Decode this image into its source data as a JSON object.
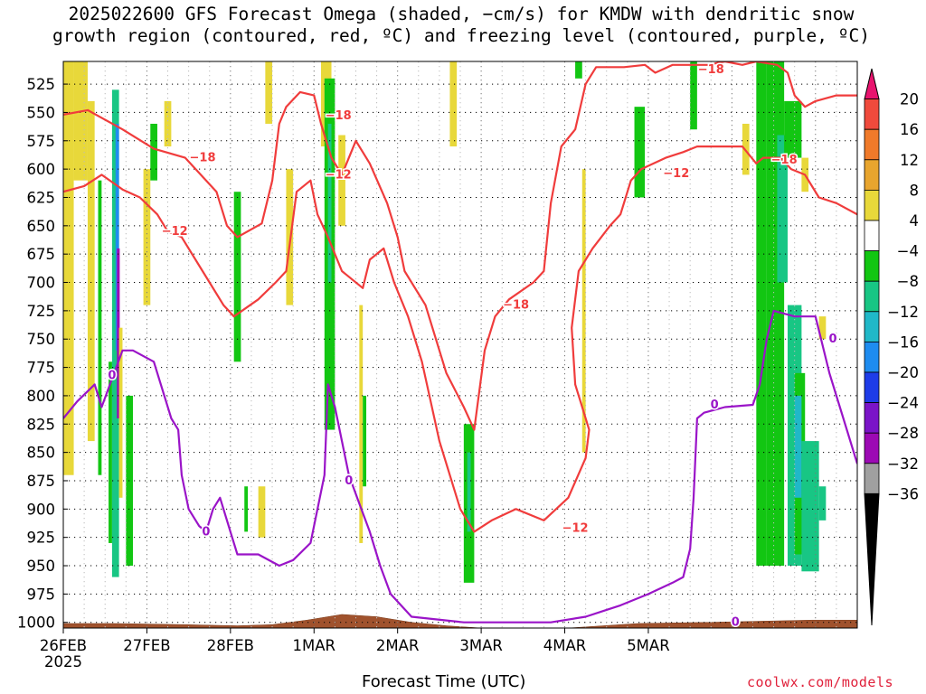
{
  "title_line1": "2025022600 GFS Forecast Omega (shaded, −cm/s) for KMDW with dendritic snow",
  "title_line2": "growth region (contoured, red, ºC) and freezing level (contoured, purple, ºC)",
  "credit": "coolwx.com/models",
  "chart_data": {
    "type": "heatmap",
    "title": "2025022600 GFS Forecast Omega (shaded, −cm/s) for KMDW with dendritic snow growth region (contoured, red, ºC) and freezing level (contoured, purple, ºC)",
    "xlabel": "Forecast Time (UTC)",
    "ylabel": "",
    "x_ticks": [
      "26FEB",
      "27FEB",
      "28FEB",
      "1MAR",
      "2MAR",
      "3MAR",
      "4MAR",
      "5MAR"
    ],
    "x_tick_sublabel": "2025",
    "x_range_hours": [
      0,
      228
    ],
    "y_ticks": [
      525,
      550,
      575,
      600,
      625,
      650,
      675,
      700,
      725,
      750,
      775,
      800,
      825,
      850,
      875,
      900,
      925,
      950,
      975,
      1000
    ],
    "y_range_hPa": [
      1005,
      505
    ],
    "colorbar": {
      "boundaries": [
        20,
        16,
        12,
        8,
        4,
        -4,
        -8,
        -12,
        -16,
        -20,
        -24,
        -28,
        -32,
        -36
      ],
      "labels": [
        "20",
        "16",
        "12",
        "8",
        "4",
        "−4",
        "−8",
        "−12",
        "−16",
        "−20",
        "−24",
        "−28",
        "−32",
        "−36"
      ],
      "colors": [
        "#e8146e",
        "#f04a3c",
        "#f07a2a",
        "#e8a52e",
        "#e8d83a",
        "#ffffff",
        "#12c612",
        "#18c684",
        "#20b8c8",
        "#1e8cf0",
        "#1e3ce8",
        "#7a14c8",
        "#9c0ab4",
        "#a0a0a0",
        "#000000"
      ]
    },
    "omega_cells": [
      {
        "h0": 0,
        "h1": 3,
        "p0": 505,
        "p1": 870,
        "v": 6
      },
      {
        "h0": 3,
        "h1": 7,
        "p0": 505,
        "p1": 610,
        "v": 7
      },
      {
        "h0": 7,
        "h1": 9,
        "p0": 540,
        "p1": 840,
        "v": 6
      },
      {
        "h0": 10,
        "h1": 11,
        "p0": 610,
        "p1": 870,
        "v": -6
      },
      {
        "h0": 13,
        "h1": 14,
        "p0": 770,
        "p1": 930,
        "v": -6
      },
      {
        "h0": 14,
        "h1": 16,
        "p0": 530,
        "p1": 960,
        "v": -10
      },
      {
        "h0": 15,
        "h1": 16,
        "p0": 560,
        "p1": 760,
        "v": -18
      },
      {
        "h0": 15.4,
        "h1": 16.2,
        "p0": 670,
        "p1": 820,
        "v": -30
      },
      {
        "h0": 16,
        "h1": 17,
        "p0": 740,
        "p1": 890,
        "v": 6
      },
      {
        "h0": 18,
        "h1": 20,
        "p0": 800,
        "p1": 950,
        "v": -6
      },
      {
        "h0": 23,
        "h1": 25,
        "p0": 600,
        "p1": 720,
        "v": 6
      },
      {
        "h0": 25,
        "h1": 27,
        "p0": 560,
        "p1": 610,
        "v": -6
      },
      {
        "h0": 29,
        "h1": 31,
        "p0": 540,
        "p1": 580,
        "v": 6
      },
      {
        "h0": 49,
        "h1": 51,
        "p0": 620,
        "p1": 770,
        "v": -6
      },
      {
        "h0": 52,
        "h1": 53,
        "p0": 880,
        "p1": 920,
        "v": -6
      },
      {
        "h0": 56,
        "h1": 58,
        "p0": 880,
        "p1": 925,
        "v": 6
      },
      {
        "h0": 58,
        "h1": 60,
        "p0": 505,
        "p1": 560,
        "v": 6
      },
      {
        "h0": 64,
        "h1": 66,
        "p0": 600,
        "p1": 720,
        "v": 6
      },
      {
        "h0": 74,
        "h1": 77,
        "p0": 505,
        "p1": 580,
        "v": 6
      },
      {
        "h0": 75,
        "h1": 78,
        "p0": 520,
        "p1": 830,
        "v": -6
      },
      {
        "h0": 76,
        "h1": 77,
        "p0": 560,
        "p1": 700,
        "v": -10
      },
      {
        "h0": 79,
        "h1": 81,
        "p0": 570,
        "p1": 650,
        "v": 6
      },
      {
        "h0": 85,
        "h1": 86,
        "p0": 720,
        "p1": 930,
        "v": 6
      },
      {
        "h0": 86,
        "h1": 87,
        "p0": 800,
        "p1": 880,
        "v": -6
      },
      {
        "h0": 111,
        "h1": 113,
        "p0": 505,
        "p1": 580,
        "v": 6
      },
      {
        "h0": 115,
        "h1": 118,
        "p0": 825,
        "p1": 965,
        "v": -6
      },
      {
        "h0": 116,
        "h1": 117,
        "p0": 850,
        "p1": 920,
        "v": -10
      },
      {
        "h0": 147,
        "h1": 149,
        "p0": 505,
        "p1": 520,
        "v": -6
      },
      {
        "h0": 149,
        "h1": 150,
        "p0": 600,
        "p1": 850,
        "v": 6
      },
      {
        "h0": 164,
        "h1": 167,
        "p0": 545,
        "p1": 625,
        "v": -6
      },
      {
        "h0": 180,
        "h1": 182,
        "p0": 505,
        "p1": 565,
        "v": -6
      },
      {
        "h0": 195,
        "h1": 197,
        "p0": 560,
        "p1": 605,
        "v": 6
      },
      {
        "h0": 199,
        "h1": 202,
        "p0": 505,
        "p1": 950,
        "v": -6
      },
      {
        "h0": 202,
        "h1": 207,
        "p0": 505,
        "p1": 950,
        "v": -6
      },
      {
        "h0": 205,
        "h1": 208,
        "p0": 570,
        "p1": 700,
        "v": -10
      },
      {
        "h0": 207,
        "h1": 212,
        "p0": 540,
        "p1": 590,
        "v": -6
      },
      {
        "h0": 208,
        "h1": 212,
        "p0": 720,
        "p1": 950,
        "v": -10
      },
      {
        "h0": 210,
        "h1": 213,
        "p0": 780,
        "p1": 940,
        "v": -6
      },
      {
        "h0": 210,
        "h1": 212,
        "p0": 800,
        "p1": 890,
        "v": -14
      },
      {
        "h0": 212,
        "h1": 214,
        "p0": 590,
        "p1": 620,
        "v": 6
      },
      {
        "h0": 212,
        "h1": 217,
        "p0": 840,
        "p1": 955,
        "v": -10
      },
      {
        "h0": 217,
        "h1": 219,
        "p0": 880,
        "p1": 910,
        "v": -10
      },
      {
        "h0": 217,
        "h1": 219,
        "p0": 730,
        "p1": 750,
        "v": 6
      }
    ],
    "series": [
      {
        "name": "-18",
        "color": "#f03c3c",
        "values": [
          [
            0,
            552
          ],
          [
            7,
            548
          ],
          [
            17,
            565
          ],
          [
            26,
            582
          ],
          [
            35,
            590
          ],
          [
            44,
            620
          ],
          [
            47,
            650
          ],
          [
            50,
            660
          ],
          [
            57,
            648
          ],
          [
            60,
            610
          ],
          [
            62,
            560
          ],
          [
            64,
            545
          ],
          [
            68,
            532
          ],
          [
            72,
            535
          ],
          [
            74,
            560
          ],
          [
            77,
            590
          ],
          [
            80,
            605
          ],
          [
            84,
            575
          ],
          [
            88,
            595
          ],
          [
            93,
            630
          ],
          [
            96,
            660
          ],
          [
            98,
            690
          ],
          [
            104,
            720
          ],
          [
            110,
            780
          ],
          [
            115,
            810
          ],
          [
            118,
            830
          ],
          [
            121,
            760
          ],
          [
            124,
            730
          ],
          [
            128,
            715
          ],
          [
            135,
            700
          ],
          [
            138,
            690
          ],
          [
            140,
            630
          ],
          [
            143,
            580
          ],
          [
            147,
            565
          ],
          [
            150,
            525
          ],
          [
            153,
            510
          ],
          [
            161,
            510
          ],
          [
            167,
            508
          ],
          [
            170,
            515
          ],
          [
            175,
            508
          ],
          [
            185,
            508
          ],
          [
            190,
            505
          ],
          [
            195,
            508
          ],
          [
            199,
            505
          ],
          [
            205,
            508
          ],
          [
            208,
            515
          ],
          [
            210,
            535
          ],
          [
            213,
            545
          ],
          [
            216,
            540
          ],
          [
            222,
            535
          ],
          [
            228,
            535
          ]
        ]
      },
      {
        "name": "-12",
        "color": "#f03c3c",
        "values": [
          [
            0,
            620
          ],
          [
            6,
            615
          ],
          [
            11,
            605
          ],
          [
            17,
            618
          ],
          [
            22,
            625
          ],
          [
            27,
            640
          ],
          [
            30,
            655
          ],
          [
            34,
            660
          ],
          [
            40,
            690
          ],
          [
            46,
            720
          ],
          [
            49,
            730
          ],
          [
            56,
            715
          ],
          [
            61,
            700
          ],
          [
            64,
            690
          ],
          [
            67,
            620
          ],
          [
            71,
            610
          ],
          [
            73,
            640
          ],
          [
            76,
            660
          ],
          [
            80,
            690
          ],
          [
            86,
            705
          ],
          [
            88,
            680
          ],
          [
            92,
            670
          ],
          [
            95,
            700
          ],
          [
            99,
            730
          ],
          [
            103,
            770
          ],
          [
            108,
            840
          ],
          [
            112,
            880
          ],
          [
            114,
            900
          ],
          [
            118,
            920
          ],
          [
            123,
            910
          ],
          [
            130,
            900
          ],
          [
            138,
            910
          ],
          [
            145,
            890
          ],
          [
            150,
            855
          ],
          [
            151,
            830
          ],
          [
            147,
            790
          ],
          [
            146,
            740
          ],
          [
            148,
            690
          ],
          [
            152,
            670
          ],
          [
            157,
            650
          ],
          [
            160,
            640
          ],
          [
            163,
            610
          ],
          [
            166,
            600
          ],
          [
            173,
            590
          ],
          [
            178,
            585
          ],
          [
            182,
            580
          ],
          [
            189,
            580
          ],
          [
            195,
            580
          ],
          [
            199,
            595
          ],
          [
            201,
            590
          ],
          [
            206,
            590
          ],
          [
            209,
            600
          ],
          [
            213,
            605
          ],
          [
            217,
            625
          ],
          [
            222,
            630
          ],
          [
            228,
            640
          ]
        ]
      },
      {
        "name": "0",
        "color": "#9a14c8",
        "values": [
          [
            0,
            820
          ],
          [
            4,
            805
          ],
          [
            9,
            790
          ],
          [
            11,
            810
          ],
          [
            14,
            785
          ],
          [
            17,
            760
          ],
          [
            20,
            760
          ],
          [
            26,
            770
          ],
          [
            29,
            800
          ],
          [
            31,
            820
          ],
          [
            33,
            830
          ],
          [
            34,
            870
          ],
          [
            36,
            900
          ],
          [
            39,
            915
          ],
          [
            41,
            920
          ],
          [
            43,
            900
          ],
          [
            45,
            890
          ],
          [
            48,
            920
          ],
          [
            50,
            940
          ],
          [
            56,
            940
          ],
          [
            62,
            950
          ],
          [
            66,
            945
          ],
          [
            71,
            930
          ],
          [
            75,
            870
          ],
          [
            76,
            790
          ],
          [
            78,
            810
          ],
          [
            80,
            840
          ],
          [
            82,
            870
          ],
          [
            85,
            895
          ],
          [
            88,
            920
          ],
          [
            91,
            950
          ],
          [
            94,
            975
          ],
          [
            97,
            985
          ],
          [
            100,
            995
          ],
          [
            115,
            1000
          ],
          [
            140,
            1000
          ],
          [
            150,
            995
          ],
          [
            155,
            990
          ],
          [
            160,
            985
          ],
          [
            168,
            975
          ],
          [
            175,
            965
          ],
          [
            178,
            960
          ],
          [
            180,
            935
          ],
          [
            181,
            890
          ],
          [
            182,
            820
          ],
          [
            184,
            815
          ],
          [
            190,
            810
          ],
          [
            198,
            808
          ],
          [
            200,
            790
          ],
          [
            202,
            750
          ],
          [
            204,
            725
          ],
          [
            210,
            730
          ],
          [
            216,
            730
          ],
          [
            220,
            780
          ],
          [
            224,
            820
          ],
          [
            228,
            860
          ]
        ]
      }
    ],
    "contour_labels": [
      {
        "text": "−18",
        "h": 40,
        "p": 590
      },
      {
        "text": "−18",
        "h": 79,
        "p": 553
      },
      {
        "text": "−18",
        "h": 130,
        "p": 720
      },
      {
        "text": "−18",
        "h": 186,
        "p": 512
      },
      {
        "text": "−18",
        "h": 207,
        "p": 592
      },
      {
        "text": "−12",
        "h": 32,
        "p": 655
      },
      {
        "text": "−12",
        "h": 79,
        "p": 605
      },
      {
        "text": "−12",
        "h": 147,
        "p": 917
      },
      {
        "text": "−12",
        "h": 176,
        "p": 604
      },
      {
        "text": "0",
        "h": 14,
        "p": 782
      },
      {
        "text": "0",
        "h": 41,
        "p": 920
      },
      {
        "text": "0",
        "h": 82,
        "p": 875
      },
      {
        "text": "0",
        "h": 187,
        "p": 808
      },
      {
        "text": "0",
        "h": 193,
        "p": 1000
      },
      {
        "text": "0",
        "h": 221,
        "p": 750
      }
    ],
    "terrain_surface": [
      [
        0,
        1001
      ],
      [
        15,
        1001
      ],
      [
        35,
        1002
      ],
      [
        50,
        1003
      ],
      [
        60,
        1002
      ],
      [
        70,
        998
      ],
      [
        80,
        993
      ],
      [
        90,
        995
      ],
      [
        100,
        1000
      ],
      [
        110,
        1003
      ],
      [
        120,
        1005
      ],
      [
        132,
        1007
      ],
      [
        140,
        1006
      ],
      [
        150,
        1004
      ],
      [
        165,
        1001
      ],
      [
        185,
        1000
      ],
      [
        200,
        999
      ],
      [
        215,
        998
      ],
      [
        228,
        998
      ]
    ]
  }
}
